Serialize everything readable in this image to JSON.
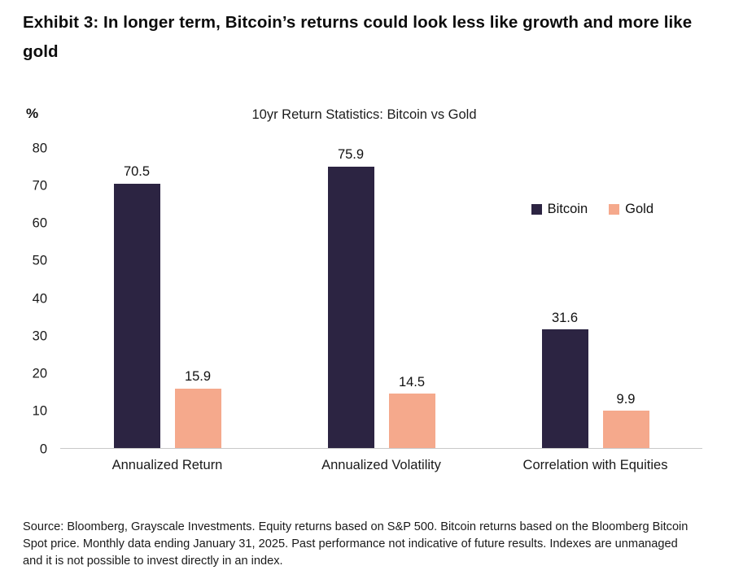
{
  "heading": "Exhibit 3: In longer term, Bitcoin’s returns could look less like growth and more like gold",
  "chart_data": {
    "type": "bar",
    "title": "10yr Return Statistics: Bitcoin vs Gold",
    "ylabel": "%",
    "xlabel": "",
    "categories": [
      "Annualized Return",
      "Annualized Volatility",
      "Correlation with Equities"
    ],
    "series": [
      {
        "name": "Bitcoin",
        "color": "#2c2442",
        "values": [
          70.5,
          75.9,
          31.6
        ]
      },
      {
        "name": "Gold",
        "color": "#f5a98c",
        "values": [
          15.9,
          14.5,
          9.9
        ]
      }
    ],
    "ylim": [
      0,
      80
    ],
    "ytick_step": 10,
    "grid": false,
    "legend_position": "right",
    "data_labels": true
  },
  "source_note": "Source: Bloomberg, Grayscale Investments. Equity returns based on S&P 500. Bitcoin returns based on the Bloomberg Bitcoin Spot price. Monthly data ending January 31, 2025. Past performance not indicative of future results. Indexes are unmanaged and it is not possible to invest directly in an index."
}
